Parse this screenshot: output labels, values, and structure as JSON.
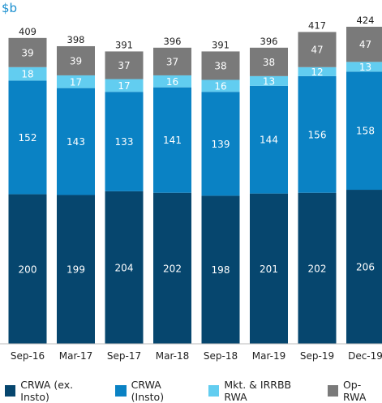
{
  "chart_data": {
    "type": "bar",
    "stacked": true,
    "unit_label": "$b",
    "categories": [
      "Sep-16",
      "Mar-17",
      "Sep-17",
      "Mar-18",
      "Sep-18",
      "Mar-19",
      "Sep-19",
      "Dec-19"
    ],
    "series": [
      {
        "name": "CRWA (ex. Insto)",
        "color": "#06466e",
        "values": [
          200,
          199,
          204,
          202,
          198,
          201,
          202,
          206
        ]
      },
      {
        "name": "CRWA (Insto)",
        "color": "#0a82c4",
        "values": [
          152,
          143,
          133,
          141,
          139,
          144,
          156,
          158
        ]
      },
      {
        "name": "Mkt. & IRRBB RWA",
        "color": "#62cdf0",
        "values": [
          18,
          17,
          17,
          16,
          16,
          13,
          12,
          13
        ]
      },
      {
        "name": "Op-RWA",
        "color": "#7a7a7a",
        "values": [
          39,
          39,
          37,
          37,
          38,
          38,
          47,
          47
        ]
      }
    ],
    "totals": [
      409,
      398,
      391,
      396,
      391,
      396,
      417,
      424
    ],
    "ylim": [
      0,
      424
    ],
    "grid": false,
    "legend_position": "bottom"
  }
}
